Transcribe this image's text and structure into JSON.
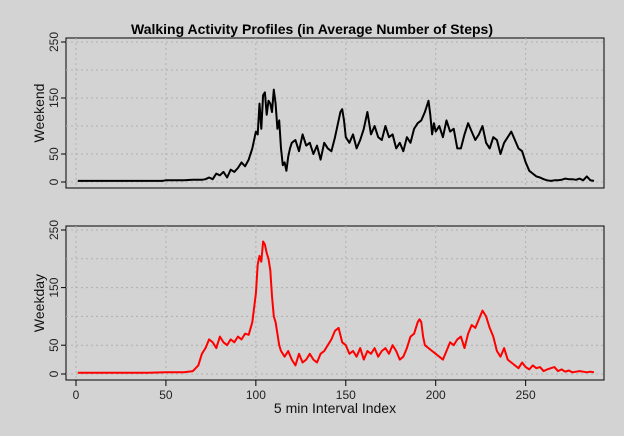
{
  "chart_data": {
    "type": "line",
    "title": "Walking Activity Profiles (in Average Number of Steps)",
    "xlabel": "5 min Interval Index",
    "xlim": [
      0,
      288
    ],
    "x_ticks": [
      "0",
      "50",
      "100",
      "150",
      "200",
      "250"
    ],
    "y_ticks": [
      "0",
      "50",
      "150",
      "250"
    ],
    "grid": true,
    "panels": [
      {
        "name": "Weekend",
        "ylabel": "Weekend",
        "color": "#000000",
        "ylim": [
          0,
          250
        ],
        "series": {
          "x": [
            1,
            10,
            20,
            30,
            40,
            48,
            50,
            55,
            60,
            65,
            70,
            72,
            74,
            76,
            78,
            80,
            82,
            84,
            86,
            88,
            90,
            92,
            94,
            96,
            98,
            100,
            101,
            102,
            103,
            104,
            105,
            106,
            107,
            108,
            109,
            110,
            111,
            112,
            113,
            114,
            115,
            116,
            117,
            118,
            119,
            120,
            122,
            124,
            126,
            128,
            130,
            132,
            134,
            136,
            138,
            140,
            142,
            144,
            145,
            146,
            147,
            148,
            149,
            150,
            152,
            154,
            156,
            158,
            160,
            162,
            164,
            166,
            168,
            170,
            172,
            174,
            176,
            178,
            180,
            182,
            184,
            186,
            188,
            190,
            192,
            194,
            195,
            196,
            197,
            198,
            199,
            200,
            202,
            204,
            206,
            208,
            210,
            212,
            214,
            216,
            218,
            220,
            222,
            224,
            226,
            228,
            230,
            232,
            234,
            236,
            238,
            240,
            242,
            244,
            246,
            248,
            250,
            252,
            254,
            256,
            258,
            260,
            262,
            264,
            266,
            268,
            270,
            272,
            274,
            276,
            278,
            280,
            282,
            284,
            286,
            288
          ],
          "y": [
            2,
            2,
            2,
            2,
            2,
            2,
            3,
            3,
            3,
            4,
            4,
            5,
            8,
            5,
            15,
            12,
            18,
            8,
            22,
            18,
            25,
            35,
            28,
            40,
            60,
            90,
            85,
            140,
            95,
            155,
            160,
            120,
            145,
            140,
            125,
            165,
            140,
            95,
            110,
            60,
            30,
            35,
            20,
            45,
            60,
            70,
            75,
            55,
            85,
            65,
            70,
            50,
            65,
            40,
            70,
            60,
            55,
            80,
            95,
            110,
            125,
            130,
            110,
            80,
            70,
            85,
            60,
            75,
            95,
            125,
            85,
            100,
            80,
            75,
            100,
            80,
            85,
            60,
            70,
            55,
            80,
            70,
            95,
            105,
            110,
            125,
            135,
            145,
            120,
            85,
            105,
            90,
            100,
            80,
            110,
            90,
            95,
            60,
            60,
            85,
            105,
            90,
            75,
            85,
            100,
            70,
            60,
            80,
            75,
            50,
            70,
            80,
            90,
            75,
            60,
            55,
            35,
            20,
            15,
            10,
            8,
            5,
            3,
            2,
            3,
            3,
            4,
            6,
            5,
            5,
            4,
            6,
            3,
            10,
            3,
            2
          ],
          "y_orig_note": "weekend panel"
        }
      },
      {
        "name": "Weekday",
        "ylabel": "Weekday",
        "color": "#ff0000",
        "ylim": [
          0,
          250
        ],
        "series": {
          "x": [
            1,
            10,
            20,
            30,
            40,
            50,
            55,
            60,
            65,
            68,
            70,
            72,
            74,
            76,
            78,
            80,
            82,
            84,
            86,
            88,
            90,
            92,
            94,
            96,
            98,
            100,
            101,
            102,
            103,
            104,
            105,
            106,
            107,
            108,
            109,
            110,
            111,
            112,
            113,
            114,
            115,
            116,
            118,
            120,
            122,
            124,
            126,
            128,
            130,
            132,
            134,
            136,
            138,
            140,
            142,
            144,
            146,
            148,
            150,
            152,
            154,
            156,
            158,
            160,
            162,
            164,
            166,
            168,
            170,
            172,
            174,
            176,
            178,
            180,
            182,
            184,
            186,
            188,
            190,
            191,
            192,
            193,
            194,
            196,
            198,
            200,
            202,
            204,
            206,
            208,
            210,
            212,
            214,
            216,
            218,
            220,
            222,
            224,
            226,
            227,
            228,
            230,
            232,
            234,
            236,
            238,
            240,
            242,
            244,
            246,
            248,
            250,
            252,
            254,
            256,
            258,
            260,
            262,
            264,
            266,
            268,
            270,
            272,
            274,
            276,
            278,
            280,
            282,
            284,
            286,
            288
          ],
          "y": [
            2,
            2,
            2,
            2,
            2,
            3,
            3,
            3,
            5,
            15,
            35,
            45,
            60,
            55,
            45,
            65,
            55,
            50,
            60,
            55,
            65,
            60,
            70,
            68,
            90,
            140,
            190,
            205,
            195,
            230,
            225,
            210,
            200,
            180,
            135,
            100,
            90,
            70,
            50,
            40,
            35,
            30,
            40,
            25,
            15,
            35,
            20,
            25,
            35,
            25,
            20,
            35,
            40,
            50,
            60,
            75,
            80,
            55,
            50,
            35,
            40,
            30,
            45,
            25,
            40,
            35,
            45,
            30,
            40,
            45,
            35,
            50,
            40,
            25,
            30,
            45,
            65,
            70,
            90,
            95,
            90,
            65,
            50,
            45,
            40,
            35,
            30,
            25,
            40,
            55,
            50,
            60,
            65,
            45,
            70,
            85,
            80,
            95,
            110,
            105,
            100,
            80,
            65,
            40,
            30,
            45,
            25,
            20,
            15,
            10,
            20,
            12,
            8,
            15,
            10,
            12,
            5,
            8,
            10,
            12,
            5,
            8,
            4,
            6,
            3,
            4,
            5,
            4,
            3,
            4,
            3
          ]
        }
      }
    ]
  }
}
